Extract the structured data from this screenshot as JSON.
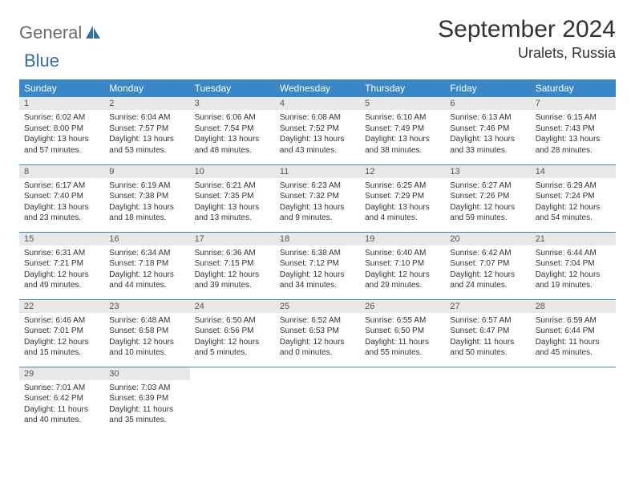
{
  "logo": {
    "text1": "General",
    "text2": "Blue"
  },
  "title": "September 2024",
  "location": "Uralets, Russia",
  "colors": {
    "header_bg": "#3a87c8",
    "header_fg": "#ffffff",
    "daynum_bg": "#e8e8e8",
    "rule": "#3a87c8",
    "logo_gray": "#6b6b6b",
    "logo_blue": "#2f6fa8"
  },
  "weekdays": [
    "Sunday",
    "Monday",
    "Tuesday",
    "Wednesday",
    "Thursday",
    "Friday",
    "Saturday"
  ],
  "days": [
    {
      "n": 1,
      "sr": "6:02 AM",
      "ss": "8:00 PM",
      "dl": "13 hours and 57 minutes."
    },
    {
      "n": 2,
      "sr": "6:04 AM",
      "ss": "7:57 PM",
      "dl": "13 hours and 53 minutes."
    },
    {
      "n": 3,
      "sr": "6:06 AM",
      "ss": "7:54 PM",
      "dl": "13 hours and 48 minutes."
    },
    {
      "n": 4,
      "sr": "6:08 AM",
      "ss": "7:52 PM",
      "dl": "13 hours and 43 minutes."
    },
    {
      "n": 5,
      "sr": "6:10 AM",
      "ss": "7:49 PM",
      "dl": "13 hours and 38 minutes."
    },
    {
      "n": 6,
      "sr": "6:13 AM",
      "ss": "7:46 PM",
      "dl": "13 hours and 33 minutes."
    },
    {
      "n": 7,
      "sr": "6:15 AM",
      "ss": "7:43 PM",
      "dl": "13 hours and 28 minutes."
    },
    {
      "n": 8,
      "sr": "6:17 AM",
      "ss": "7:40 PM",
      "dl": "13 hours and 23 minutes."
    },
    {
      "n": 9,
      "sr": "6:19 AM",
      "ss": "7:38 PM",
      "dl": "13 hours and 18 minutes."
    },
    {
      "n": 10,
      "sr": "6:21 AM",
      "ss": "7:35 PM",
      "dl": "13 hours and 13 minutes."
    },
    {
      "n": 11,
      "sr": "6:23 AM",
      "ss": "7:32 PM",
      "dl": "13 hours and 9 minutes."
    },
    {
      "n": 12,
      "sr": "6:25 AM",
      "ss": "7:29 PM",
      "dl": "13 hours and 4 minutes."
    },
    {
      "n": 13,
      "sr": "6:27 AM",
      "ss": "7:26 PM",
      "dl": "12 hours and 59 minutes."
    },
    {
      "n": 14,
      "sr": "6:29 AM",
      "ss": "7:24 PM",
      "dl": "12 hours and 54 minutes."
    },
    {
      "n": 15,
      "sr": "6:31 AM",
      "ss": "7:21 PM",
      "dl": "12 hours and 49 minutes."
    },
    {
      "n": 16,
      "sr": "6:34 AM",
      "ss": "7:18 PM",
      "dl": "12 hours and 44 minutes."
    },
    {
      "n": 17,
      "sr": "6:36 AM",
      "ss": "7:15 PM",
      "dl": "12 hours and 39 minutes."
    },
    {
      "n": 18,
      "sr": "6:38 AM",
      "ss": "7:12 PM",
      "dl": "12 hours and 34 minutes."
    },
    {
      "n": 19,
      "sr": "6:40 AM",
      "ss": "7:10 PM",
      "dl": "12 hours and 29 minutes."
    },
    {
      "n": 20,
      "sr": "6:42 AM",
      "ss": "7:07 PM",
      "dl": "12 hours and 24 minutes."
    },
    {
      "n": 21,
      "sr": "6:44 AM",
      "ss": "7:04 PM",
      "dl": "12 hours and 19 minutes."
    },
    {
      "n": 22,
      "sr": "6:46 AM",
      "ss": "7:01 PM",
      "dl": "12 hours and 15 minutes."
    },
    {
      "n": 23,
      "sr": "6:48 AM",
      "ss": "6:58 PM",
      "dl": "12 hours and 10 minutes."
    },
    {
      "n": 24,
      "sr": "6:50 AM",
      "ss": "6:56 PM",
      "dl": "12 hours and 5 minutes."
    },
    {
      "n": 25,
      "sr": "6:52 AM",
      "ss": "6:53 PM",
      "dl": "12 hours and 0 minutes."
    },
    {
      "n": 26,
      "sr": "6:55 AM",
      "ss": "6:50 PM",
      "dl": "11 hours and 55 minutes."
    },
    {
      "n": 27,
      "sr": "6:57 AM",
      "ss": "6:47 PM",
      "dl": "11 hours and 50 minutes."
    },
    {
      "n": 28,
      "sr": "6:59 AM",
      "ss": "6:44 PM",
      "dl": "11 hours and 45 minutes."
    },
    {
      "n": 29,
      "sr": "7:01 AM",
      "ss": "6:42 PM",
      "dl": "11 hours and 40 minutes."
    },
    {
      "n": 30,
      "sr": "7:03 AM",
      "ss": "6:39 PM",
      "dl": "11 hours and 35 minutes."
    }
  ],
  "labels": {
    "sunrise": "Sunrise:",
    "sunset": "Sunset:",
    "daylight": "Daylight:"
  },
  "layout": {
    "first_day_col": 0,
    "total_days": 30,
    "trailing_empty": 5
  }
}
